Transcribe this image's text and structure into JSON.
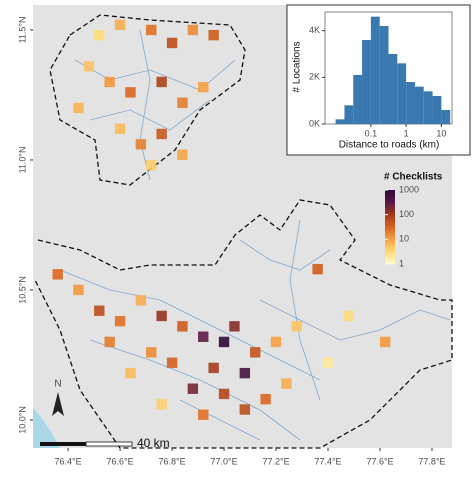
{
  "map": {
    "xlim": [
      76.265,
      77.877
    ],
    "ylim": [
      9.892,
      11.596
    ],
    "xticks": [
      {
        "value": 76.4,
        "label": "76.4°E"
      },
      {
        "value": 76.6,
        "label": "76.6°E"
      },
      {
        "value": 76.8,
        "label": "76.8°E"
      },
      {
        "value": 77.0,
        "label": "77.0°E"
      },
      {
        "value": 77.2,
        "label": "77.2°E"
      },
      {
        "value": 77.4,
        "label": "77.4°E"
      },
      {
        "value": 77.6,
        "label": "77.6°E"
      },
      {
        "value": 77.8,
        "label": "77.8°E"
      }
    ],
    "yticks": [
      {
        "value": 10.0,
        "label": "10.0°N"
      },
      {
        "value": 10.5,
        "label": "10.5°N"
      },
      {
        "value": 11.0,
        "label": "11.0°N"
      },
      {
        "value": 11.5,
        "label": "11.5°N"
      }
    ],
    "legend_title": "# Checklists",
    "legend_lim": [
      1,
      1000
    ],
    "legend_ticks": [
      1,
      10,
      100,
      1000
    ],
    "colors": [
      "#ffffcc",
      "#fed976",
      "#f5a142",
      "#d9631e",
      "#a13a1b",
      "#5a1746",
      "#2a0b3a"
    ],
    "scale_label": "40 km",
    "north_label": "N",
    "cells": {
      "lon": [
        76.52,
        76.6,
        76.72,
        76.8,
        76.88,
        76.96,
        76.48,
        76.56,
        76.64,
        76.76,
        76.84,
        76.92,
        76.6,
        76.68,
        76.76,
        76.84,
        76.72,
        76.44,
        76.36,
        76.44,
        76.52,
        76.6,
        76.68,
        76.76,
        76.84,
        76.92,
        77.0,
        77.04,
        76.96,
        77.08,
        76.88,
        77.0,
        76.8,
        76.72,
        76.64,
        76.56,
        77.12,
        77.2,
        77.28,
        77.16,
        77.24,
        77.36,
        77.48,
        77.62,
        77.4,
        77.08,
        76.92,
        76.76
      ],
      "lat": [
        11.48,
        11.52,
        11.5,
        11.45,
        11.5,
        11.48,
        11.36,
        11.3,
        11.26,
        11.3,
        11.22,
        11.28,
        11.12,
        11.06,
        11.1,
        11.02,
        10.98,
        11.2,
        10.56,
        10.5,
        10.42,
        10.38,
        10.46,
        10.4,
        10.36,
        10.32,
        10.3,
        10.36,
        10.2,
        10.18,
        10.12,
        10.1,
        10.22,
        10.26,
        10.18,
        10.3,
        10.26,
        10.3,
        10.36,
        10.08,
        10.14,
        10.58,
        10.4,
        10.3,
        10.22,
        10.04,
        10.02,
        10.06
      ],
      "checklists": [
        3,
        8,
        25,
        60,
        15,
        40,
        5,
        12,
        30,
        80,
        20,
        10,
        6,
        18,
        45,
        9,
        4,
        7,
        30,
        12,
        60,
        25,
        8,
        120,
        40,
        300,
        1200,
        150,
        90,
        500,
        200,
        70,
        35,
        15,
        6,
        20,
        50,
        10,
        5,
        30,
        8,
        40,
        3,
        12,
        2,
        60,
        25,
        4
      ]
    }
  },
  "chart_data": {
    "type": "histogram",
    "xlabel": "Distance to roads (km)",
    "ylabel": "# Locations",
    "bins": [
      0.01,
      0.0178,
      0.0316,
      0.0562,
      0.1,
      0.178,
      0.316,
      0.562,
      1,
      1.78,
      3.16,
      5.62,
      10,
      17.8
    ],
    "values": [
      200,
      800,
      2100,
      3600,
      4600,
      4200,
      3000,
      2600,
      1800,
      1600,
      1400,
      1200,
      600
    ],
    "color": "#3a78b0",
    "log_x": true,
    "xlim": [
      0.005,
      20
    ],
    "xticks": [
      0.1,
      1,
      10
    ],
    "ylim": [
      0,
      4800
    ],
    "yticks": [
      {
        "value": 0,
        "label": "0K"
      },
      {
        "value": 2000,
        "label": "2K"
      },
      {
        "value": 4000,
        "label": "4K"
      }
    ]
  }
}
